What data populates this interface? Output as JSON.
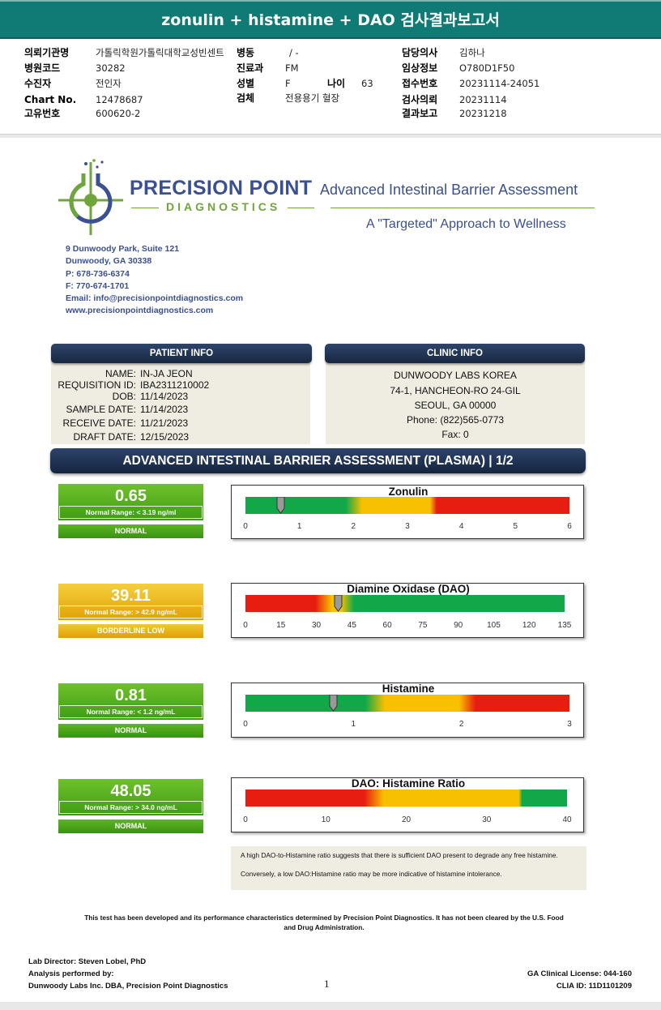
{
  "report_title": "zonulin + histamine + DAO 검사결과보고서",
  "header": {
    "rows": [
      [
        {
          "label": "의뢰기관명",
          "value": "가톨릭학원가톨릭대학교성빈센트"
        },
        {
          "label": "병동",
          "value": "/ -"
        },
        {
          "label": "담당의사",
          "value": "김하나"
        }
      ],
      [
        {
          "label": "병원코드",
          "value": "30282"
        },
        {
          "label": "진료과",
          "value": "FM"
        },
        {
          "label": "임상정보",
          "value": "O780D1F50"
        }
      ],
      [
        {
          "label": "수진자",
          "value": "전인자"
        },
        {
          "label": "성별",
          "value": "F"
        },
        {
          "label": "접수번호",
          "value": "20231114-24051"
        }
      ],
      [
        {
          "label": "Chart No.",
          "value": "12478687"
        },
        {
          "label": "검체",
          "value": "전용용기 혈장"
        },
        {
          "label": "검사의뢰",
          "value": "20231114"
        }
      ],
      [
        {
          "label": "고유번호",
          "value": "600620-2"
        },
        {
          "label": "",
          "value": ""
        },
        {
          "label": "결과보고",
          "value": "20231218"
        }
      ]
    ],
    "age_label": "나이",
    "age_value": "63"
  },
  "brand": {
    "name_top": "PRECISION POINT",
    "name_bottom": "DIAGNOSTICS",
    "assessment_title": "Advanced Intestinal Barrier Assessment",
    "tagline": "A \"Targeted\" Approach to Wellness",
    "colors": {
      "blue": "#3b4f93",
      "green": "#6fa63c"
    }
  },
  "address_lines": [
    "9 Dunwoody Park, Suite 121",
    "Dunwoody, GA 30338",
    "P: 678-736-6374",
    "F: 770-674-1701",
    "Email: info@precisionpointdiagnostics.com",
    "www.precisionpointdiagnostics.com"
  ],
  "patient_info": {
    "title": "PATIENT INFO",
    "rows": [
      {
        "label": "NAME:",
        "value": "IN-JA JEON"
      },
      {
        "label": "REQUISITION ID:",
        "value": "IBA2311210002"
      },
      {
        "label": "DOB:",
        "value": "11/14/2023"
      },
      {
        "label": "SAMPLE DATE:",
        "value": "11/14/2023"
      },
      {
        "label": "RECEIVE DATE:",
        "value": "11/21/2023"
      },
      {
        "label": "DRAFT DATE:",
        "value": "12/15/2023"
      }
    ]
  },
  "clinic_info": {
    "title": "CLINIC INFO",
    "lines": [
      "DUNWOODY LABS KOREA",
      "74-1, HANCHEON-RO 24-GIL",
      "SEOUL, GA 00000",
      "Phone: (822)565-0773",
      "Fax: 0"
    ]
  },
  "section_title": "ADVANCED INTESTINAL BARRIER ASSESSMENT (PLASMA) | 1/2",
  "results": [
    {
      "name": "Zonulin",
      "value": "0.65",
      "range": "Normal Range: < 3.19 ng/ml",
      "status": "NORMAL",
      "status_color": "#3e9c12",
      "numeric": 0.65,
      "ticks": [
        "0",
        "1",
        "2",
        "3",
        "4",
        "5",
        "6"
      ],
      "scale": [
        0,
        6
      ]
    },
    {
      "name": "Diamine Oxidase (DAO)",
      "value": "39.11",
      "range": "Normal Range: > 42.9 ng/mL",
      "status": "BORDERLINE LOW",
      "status_color": "#e1a205",
      "numeric": 39.11,
      "ticks": [
        "0",
        "15",
        "30",
        "45",
        "60",
        "75",
        "90",
        "105",
        "120",
        "135"
      ],
      "scale": [
        0,
        135
      ]
    },
    {
      "name": "Histamine",
      "value": "0.81",
      "range": "Normal Range: < 1.2 ng/mL",
      "status": "NORMAL",
      "status_color": "#3e9c12",
      "numeric": 0.81,
      "ticks": [
        "0",
        "1",
        "2",
        "3"
      ],
      "scale": [
        0,
        3
      ]
    },
    {
      "name": "DAO: Histamine Ratio",
      "value": "48.05",
      "range": "Normal Range: > 34.0 ng/mL",
      "status": "NORMAL",
      "status_color": "#3e9c12",
      "numeric": 48.05,
      "ticks": [
        "0",
        "10",
        "20",
        "30",
        "40"
      ],
      "scale": [
        0,
        40
      ]
    }
  ],
  "notes": [
    "A high DAO-to-Histamine ratio suggests that there is sufficient DAO present to degrade any free histamine.",
    "Conversely, a low DAO:Histamine ratio may be more indicative of histamine intolerance."
  ],
  "disclaimer": "This test has been developed and its performance characteristics determined by Precision Point Diagnostics. It has not been cleared by the U.S. Food and Drug Administration.",
  "footer": {
    "left": [
      "Lab Director: Steven Lobel, PhD",
      "Analysis performed by:",
      "Dunwoody Labs Inc. DBA, Precision Point Diagnostics"
    ],
    "right": [
      "GA Clinical License: 044-160",
      "CLIA ID: 11D1101209"
    ],
    "page": "1"
  }
}
